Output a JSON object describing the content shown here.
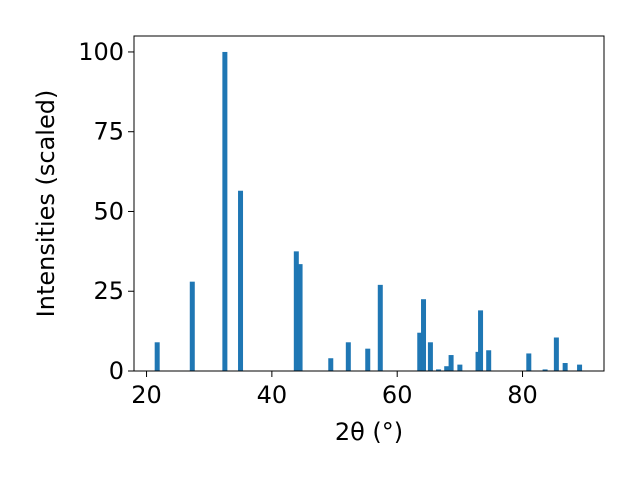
{
  "chart_data": {
    "type": "bar",
    "xlabel": "2θ (°)",
    "ylabel": "Intensities (scaled)",
    "xlim": [
      18,
      93
    ],
    "ylim": [
      0,
      105
    ],
    "xticks": [
      20,
      40,
      60,
      80
    ],
    "yticks": [
      0,
      25,
      50,
      75,
      100
    ],
    "grid": false,
    "bar_color": "#1f77b4",
    "x": [
      21.7,
      27.3,
      32.5,
      35.0,
      43.9,
      44.5,
      49.4,
      52.2,
      55.3,
      57.3,
      63.6,
      64.2,
      65.3,
      66.6,
      67.9,
      68.6,
      70.0,
      72.9,
      73.3,
      74.6,
      81.0,
      83.6,
      85.4,
      86.8,
      89.1
    ],
    "values": [
      9,
      28,
      100,
      56.5,
      37.5,
      33.5,
      4,
      9,
      7,
      27,
      12,
      22.5,
      9,
      0.5,
      1.5,
      5,
      2,
      6,
      19,
      6.5,
      5.5,
      0.5,
      10.5,
      2.5,
      2
    ]
  }
}
